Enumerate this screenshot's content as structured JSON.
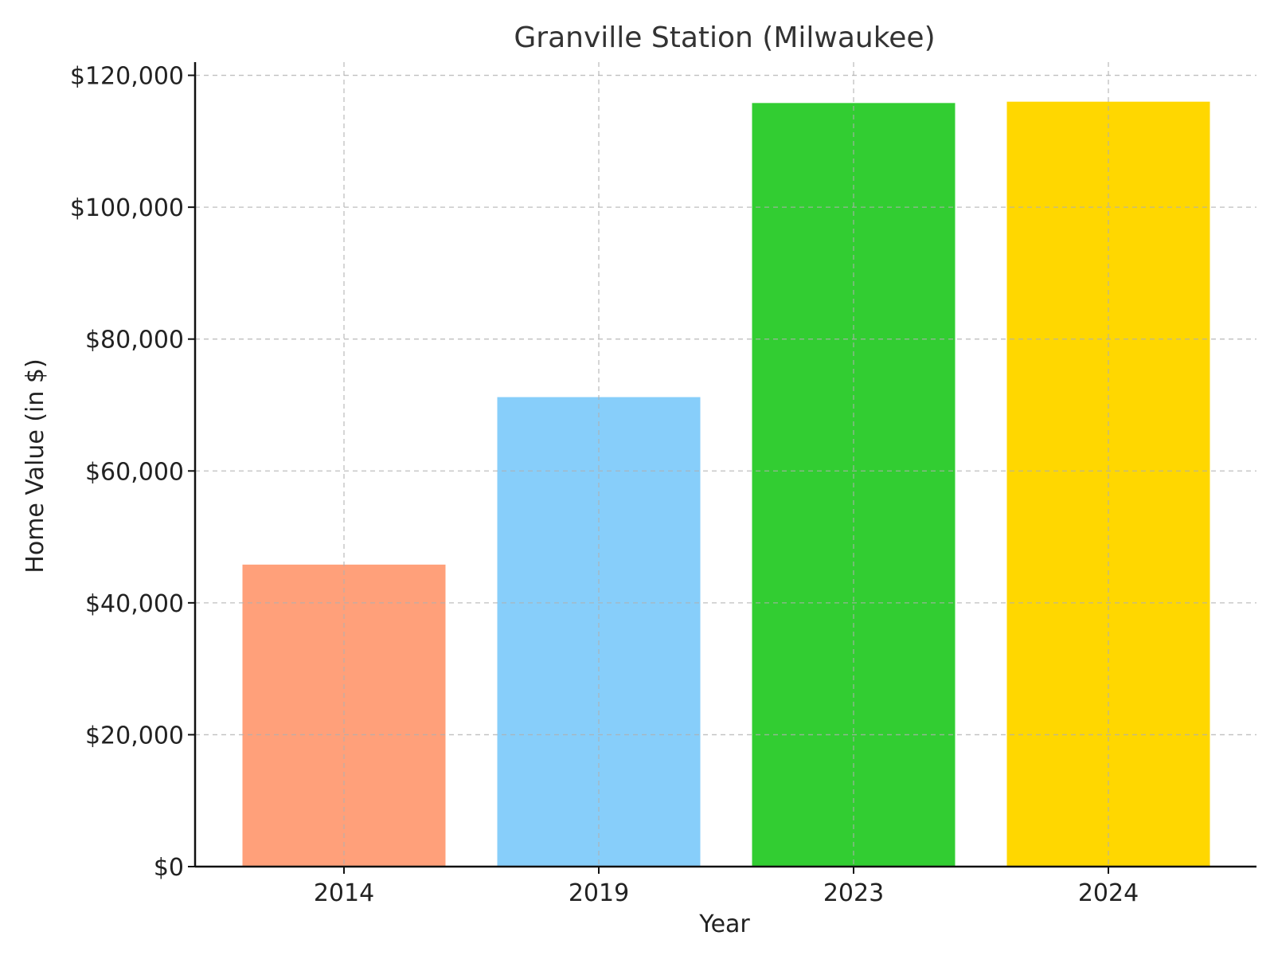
{
  "chart_data": {
    "type": "bar",
    "title": "Granville Station (Milwaukee)",
    "xlabel": "Year",
    "ylabel": "Home Value (in $)",
    "categories": [
      "2014",
      "2019",
      "2023",
      "2024"
    ],
    "values": [
      45800,
      71200,
      115800,
      116000
    ],
    "colors": [
      "#FFA07A",
      "#87CEFA",
      "#32CD32",
      "#FFD700"
    ],
    "ylim": [
      0,
      122000
    ],
    "yticks": [
      0,
      20000,
      40000,
      60000,
      80000,
      100000,
      120000
    ],
    "ytick_labels": [
      "$0",
      "$20,000",
      "$40,000",
      "$60,000",
      "$80,000",
      "$100,000",
      "$120,000"
    ],
    "grid": true,
    "legend": "none"
  }
}
